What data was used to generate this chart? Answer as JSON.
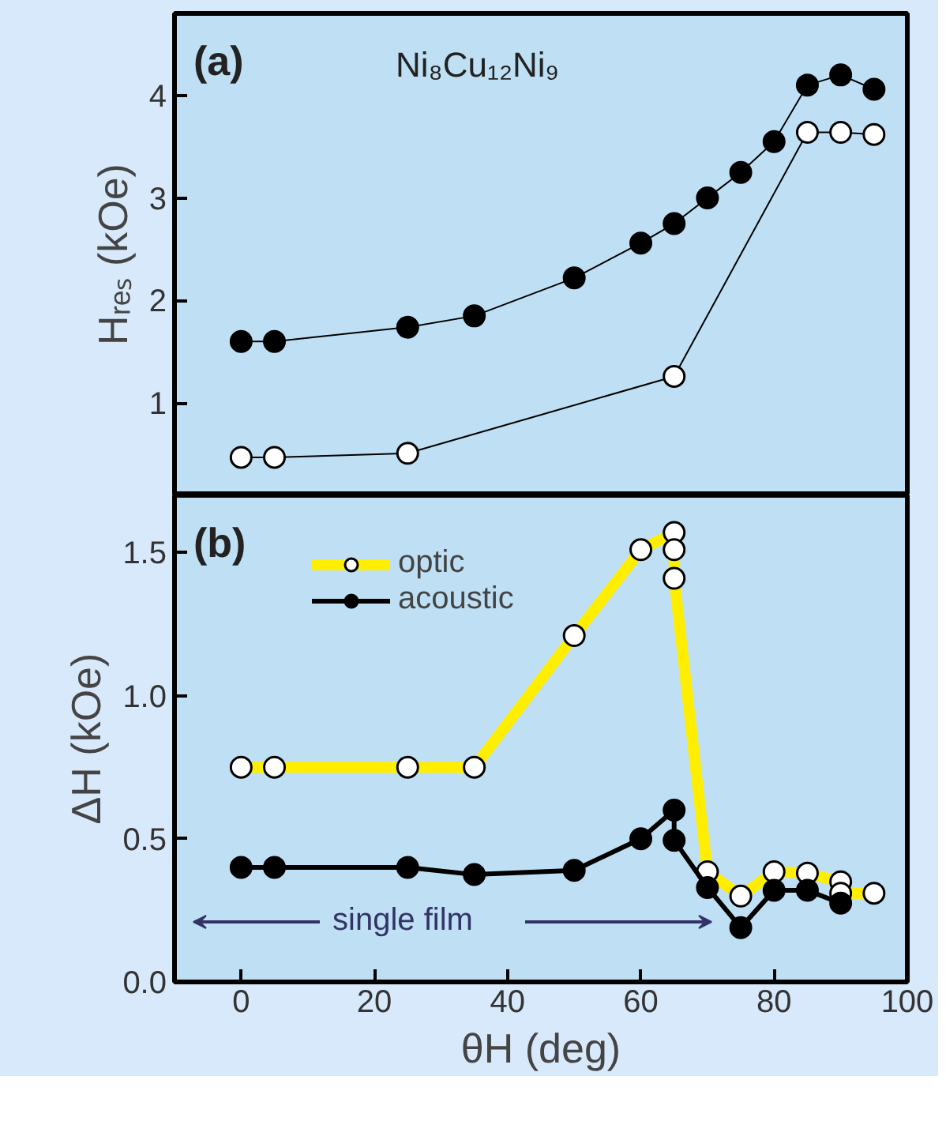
{
  "chart_data": [
    {
      "type": "line",
      "ylabel": "Hᵣₑₛ (kOe)",
      "annotations": [
        "(a)",
        "Ni₈Cu₁₂Ni₉"
      ],
      "xlim": [
        -10,
        100
      ],
      "xticks": [
        0,
        20,
        40,
        60,
        80,
        100
      ],
      "ylim": [
        0.1,
        4.8
      ],
      "yticks": [
        1,
        2,
        3,
        4
      ],
      "tick_labels": "y",
      "grid": false,
      "legend": false,
      "marker": "circle",
      "series": [
        {
          "x": [
            0,
            5,
            25,
            65,
            85,
            90,
            95
          ],
          "values": [
            0.47,
            0.47,
            0.51,
            1.26,
            3.64,
            3.64,
            3.62
          ],
          "color": "#000000"
        },
        {
          "x": [
            0,
            5,
            25,
            35,
            50,
            60,
            65,
            70,
            75,
            80,
            85,
            90,
            95
          ],
          "values": [
            1.6,
            1.6,
            1.74,
            1.85,
            2.22,
            2.56,
            2.75,
            3.0,
            3.25,
            3.55,
            4.1,
            4.2,
            4.06
          ],
          "color": "#000000"
        }
      ]
    },
    {
      "type": "line",
      "xlabel": "θH (deg)",
      "ylabel": "ΔH (kOe)",
      "annotations": [
        "(b)",
        "single film"
      ],
      "xlim": [
        -10,
        100
      ],
      "xticks": [
        0,
        20,
        40,
        60,
        80,
        100
      ],
      "ylim": [
        0,
        1.7
      ],
      "yticks": [
        {
          "value": 0,
          "label": "0.0"
        },
        {
          "value": 0.5,
          "label": "0.5"
        },
        {
          "value": 1,
          "label": "1.0"
        },
        {
          "value": 1.5,
          "label": "1.5"
        }
      ],
      "grid": false,
      "legend": "top left",
      "marker": "circle",
      "series": [
        {
          "name": "optic",
          "x": [
            0,
            5,
            25,
            35,
            50,
            60,
            65,
            65,
            65,
            70,
            75,
            80,
            85,
            90,
            90,
            95
          ],
          "values": [
            0.75,
            0.75,
            0.75,
            0.75,
            1.21,
            1.51,
            1.57,
            1.51,
            1.41,
            0.385,
            0.3,
            0.385,
            0.38,
            0.35,
            0.31,
            0.31
          ],
          "color": "#ffee00"
        },
        {
          "name": "acoustic",
          "x": [
            0,
            5,
            25,
            35,
            50,
            60,
            65,
            65,
            70,
            75,
            80,
            85,
            90
          ],
          "values": [
            0.4,
            0.4,
            0.4,
            0.375,
            0.39,
            0.5,
            0.6,
            0.495,
            0.33,
            0.19,
            0.32,
            0.32,
            0.275
          ],
          "color": "#000000"
        }
      ]
    }
  ]
}
